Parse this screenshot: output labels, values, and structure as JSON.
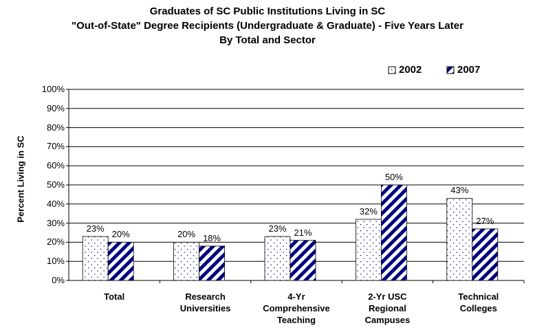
{
  "chart_data": {
    "type": "bar",
    "title": "Graduates of SC Public Institutions Living in SC\n\"Out-of-State\" Degree Recipients (Undergraduate & Graduate) - Five Years Later\nBy Total and Sector",
    "y_label": "Percent Living in SC",
    "categories": [
      "Total",
      "Research\nUniversities",
      "4-Yr\nComprehensive\nTeaching",
      "2-Yr USC\nRegional\nCampuses",
      "Technical\nColleges"
    ],
    "series": [
      {
        "name": "2002",
        "color": "#ffffff",
        "values": [
          23,
          20,
          23,
          32,
          43
        ],
        "value_labels": [
          "23%",
          "20%",
          "23%",
          "32%",
          "43%"
        ]
      },
      {
        "name": "2007",
        "color": "#000080",
        "values": [
          20,
          18,
          21,
          50,
          27
        ],
        "value_labels": [
          "20%",
          "18%",
          "21%",
          "50%",
          "27%"
        ]
      }
    ],
    "ylim": [
      0,
      100
    ],
    "yticks": [
      {
        "value": 0,
        "label": "0%"
      },
      {
        "value": 10,
        "label": "10%"
      },
      {
        "value": 20,
        "label": "20%"
      },
      {
        "value": 30,
        "label": "30%"
      },
      {
        "value": 40,
        "label": "40%"
      },
      {
        "value": 50,
        "label": "50%"
      },
      {
        "value": 60,
        "label": "60%"
      },
      {
        "value": 70,
        "label": "70%"
      },
      {
        "value": 80,
        "label": "80%"
      },
      {
        "value": 90,
        "label": "90%"
      },
      {
        "value": 100,
        "label": "100%"
      }
    ],
    "grid": true,
    "legend": "top-right"
  }
}
